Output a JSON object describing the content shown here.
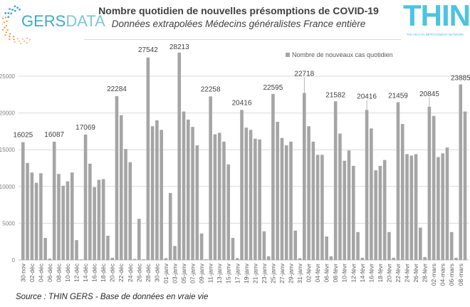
{
  "header": {
    "title": "Nombre quotidien de nouvelles présomptions de COVID-19",
    "subtitle": "Données extrapolées Médecins généralistes France entière"
  },
  "logos": {
    "gers": {
      "part1": "GERS",
      "part2": "DATA"
    },
    "thin": {
      "word": "THIN",
      "tagline": "THE HEALTH IMPROVEMENT NETWORK"
    }
  },
  "footer": {
    "source": "Source : THIN GERS - Base de données en vraie vie"
  },
  "colors": {
    "bar": "#a5a5a5",
    "grid": "#d9d9d9",
    "thin_blue": "#4ec3e0",
    "gers_blue": "#3fa9c5",
    "gers_orange": "#f28c28"
  },
  "chart_data": {
    "type": "bar",
    "title": "Nombre quotidien de nouvelles présomptions de COVID-19",
    "subtitle": "Données extrapolées Médecins généralistes France entière",
    "xlabel": "",
    "ylabel": "",
    "ylim": [
      0,
      28000
    ],
    "yticks": [
      0,
      5000,
      10000,
      15000,
      20000,
      25000
    ],
    "grid": true,
    "legend": {
      "position": "top-right",
      "entries": [
        "Nombre de nouveaux cas quotidien"
      ]
    },
    "x_tick_labels": [
      "30-nov",
      "02-déc",
      "04-déc",
      "06-déc",
      "08-déc",
      "10-déc",
      "12-déc",
      "14-déc",
      "16-déc",
      "18-déc",
      "20-déc",
      "22-déc",
      "24-déc",
      "26-déc",
      "28-déc",
      "30-déc",
      "01-janv",
      "03-janv",
      "05-janv",
      "07-janv",
      "09-janv",
      "11-janv",
      "13-janv",
      "15-janv",
      "17-janv",
      "19-janv",
      "21-janv",
      "23-janv",
      "25-janv",
      "27-janv",
      "29-janv",
      "31-janv",
      "02-févr",
      "04-févr",
      "06-févr",
      "08-févr",
      "10-févr",
      "12-févr",
      "14-févr",
      "16-févr",
      "18-févr",
      "20-févr",
      "22-févr",
      "24-févr",
      "26-févr",
      "28-févr",
      "02-mars",
      "04-mars",
      "06-mars",
      "08-mars"
    ],
    "series": [
      {
        "name": "Nombre de nouveaux cas quotidien",
        "values": [
          16025,
          13200,
          11900,
          10500,
          11800,
          3000,
          200,
          16087,
          11700,
          10100,
          10700,
          11900,
          2700,
          50,
          17069,
          13100,
          9900,
          10900,
          11000,
          3300,
          300,
          22284,
          19700,
          15100,
          13300,
          150,
          5600,
          100,
          27542,
          18200,
          19000,
          17700,
          250,
          9100,
          1900,
          28213,
          20200,
          19100,
          18100,
          15600,
          3600,
          100,
          22258,
          17100,
          17300,
          16100,
          13000,
          3000,
          250,
          20416,
          18000,
          17700,
          16500,
          16400,
          3900,
          500,
          22595,
          18800,
          16600,
          15600,
          16100,
          4000,
          250,
          22718,
          18200,
          16100,
          14300,
          14300,
          3200,
          500,
          21582,
          17200,
          13500,
          14900,
          12800,
          3800,
          300,
          20416,
          17900,
          12200,
          12800,
          13600,
          3800,
          300,
          21459,
          18500,
          14400,
          14200,
          14400,
          4400,
          400,
          20845,
          19600,
          14000,
          14500,
          15300,
          3800,
          300,
          23885,
          20200
        ]
      }
    ],
    "data_labels": [
      {
        "index": 0,
        "text": "16025"
      },
      {
        "index": 7,
        "text": "16087"
      },
      {
        "index": 14,
        "text": "17069"
      },
      {
        "index": 21,
        "text": "22284"
      },
      {
        "index": 28,
        "text": "27542"
      },
      {
        "index": 35,
        "text": "28213"
      },
      {
        "index": 42,
        "text": "22258"
      },
      {
        "index": 49,
        "text": "20416"
      },
      {
        "index": 56,
        "text": "22595"
      },
      {
        "index": 63,
        "text": "22718"
      },
      {
        "index": 70,
        "text": "21582"
      },
      {
        "index": 77,
        "text": "20416"
      },
      {
        "index": 84,
        "text": "21459"
      },
      {
        "index": 91,
        "text": "20845"
      },
      {
        "index": 98,
        "text": "23885"
      }
    ]
  }
}
